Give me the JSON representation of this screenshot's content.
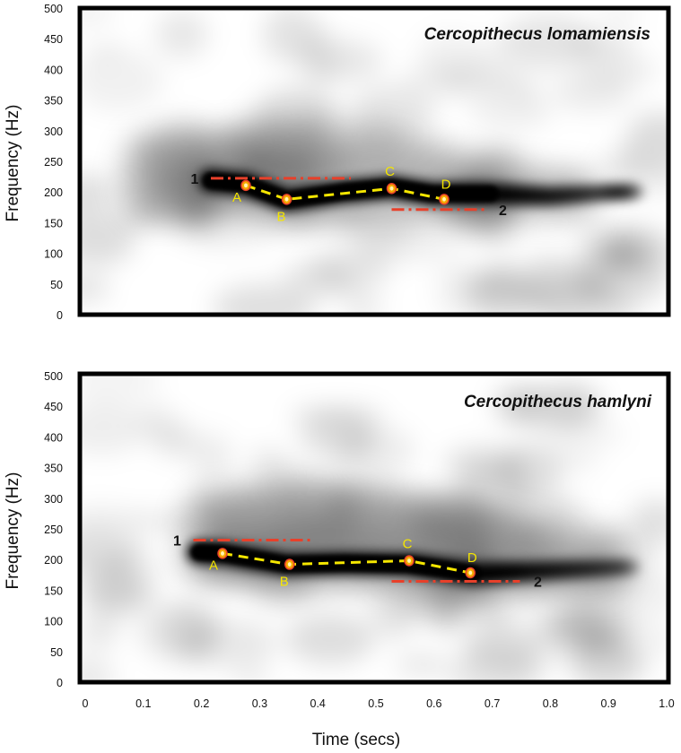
{
  "chart_data": [
    {
      "type": "spectrogram",
      "title": "Cercopithecus lomamiensis",
      "ylabel": "Frequency (Hz)",
      "xlim": [
        0,
        1.0
      ],
      "ylim": [
        0,
        500
      ],
      "yticks": [
        0,
        50,
        100,
        150,
        200,
        250,
        300,
        350,
        400,
        450,
        500
      ],
      "trace": [
        [
          0.22,
          218
        ],
        [
          0.28,
          212
        ],
        [
          0.35,
          186
        ],
        [
          0.45,
          200
        ],
        [
          0.53,
          207
        ],
        [
          0.6,
          196
        ],
        [
          0.7,
          196
        ],
        [
          0.8,
          192
        ],
        [
          0.9,
          198
        ],
        [
          0.95,
          200
        ]
      ],
      "halo": [
        [
          0.1,
          290
        ],
        [
          0.2,
          300
        ],
        [
          0.3,
          305
        ],
        [
          0.4,
          320
        ],
        [
          0.55,
          300
        ],
        [
          0.7,
          250
        ],
        [
          0.9,
          230
        ]
      ],
      "points": [
        {
          "label": "A",
          "x": 0.28,
          "y": 210
        },
        {
          "label": "B",
          "x": 0.35,
          "y": 187
        },
        {
          "label": "C",
          "x": 0.53,
          "y": 205
        },
        {
          "label": "D",
          "x": 0.62,
          "y": 187
        }
      ],
      "reference_lines": [
        {
          "label": "1",
          "x": [
            0.22,
            0.46
          ],
          "y": 222
        },
        {
          "label": "2",
          "x": [
            0.53,
            0.69
          ],
          "y": 170
        }
      ],
      "colors": {
        "background": "#ffffff",
        "energy": "#000000",
        "contour": "#f5e600",
        "reference": "#e8402a",
        "point": "#f5a800"
      }
    },
    {
      "type": "spectrogram",
      "title": "Cercopithecus hamlyni",
      "xlabel": "Time (secs)",
      "ylabel": "Frequency (Hz)",
      "xlim": [
        0,
        1.0
      ],
      "ylim": [
        0,
        500
      ],
      "xticks": [
        "0",
        "0.1",
        "0.2",
        "0.3",
        "0.4",
        "0.5",
        "0.6",
        "0.7",
        "0.8",
        "0.9",
        "1.0"
      ],
      "yticks": [
        0,
        50,
        100,
        150,
        200,
        250,
        300,
        350,
        400,
        450,
        500
      ],
      "trace": [
        [
          0.2,
          210
        ],
        [
          0.24,
          208
        ],
        [
          0.35,
          190
        ],
        [
          0.45,
          192
        ],
        [
          0.56,
          190
        ],
        [
          0.62,
          182
        ],
        [
          0.67,
          175
        ],
        [
          0.75,
          178
        ],
        [
          0.85,
          182
        ],
        [
          0.95,
          186
        ]
      ],
      "halo": [
        [
          0.2,
          305
        ],
        [
          0.3,
          320
        ],
        [
          0.4,
          330
        ],
        [
          0.5,
          320
        ],
        [
          0.6,
          300
        ],
        [
          0.7,
          280
        ],
        [
          0.8,
          260
        ],
        [
          0.95,
          240
        ]
      ],
      "points": [
        {
          "label": "A",
          "x": 0.24,
          "y": 208
        },
        {
          "label": "B",
          "x": 0.355,
          "y": 190
        },
        {
          "label": "C",
          "x": 0.56,
          "y": 196
        },
        {
          "label": "D",
          "x": 0.665,
          "y": 176
        }
      ],
      "reference_lines": [
        {
          "label": "1",
          "x": [
            0.19,
            0.39
          ],
          "y": 230
        },
        {
          "label": "2",
          "x": [
            0.53,
            0.75
          ],
          "y": 162
        }
      ],
      "colors": {
        "background": "#ffffff",
        "energy": "#000000",
        "contour": "#f5e600",
        "reference": "#e8402a",
        "point": "#f5a800"
      }
    }
  ]
}
